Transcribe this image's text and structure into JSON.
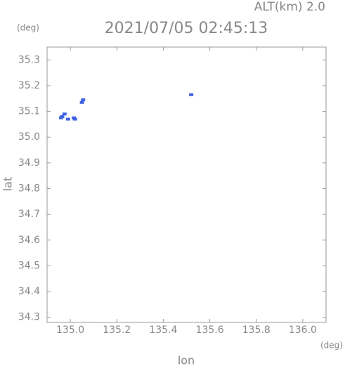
{
  "chart_data": {
    "type": "scatter",
    "title": "2021/07/05 02:45:13",
    "subtitle": "ALT(km) 2.0",
    "x_label": "lon",
    "y_label": "lat",
    "x_unit": "(deg)",
    "y_unit": "(deg)",
    "color": "#3f63e0",
    "x": [
      134.965,
      134.975,
      134.96,
      134.99,
      135.02,
      135.015,
      135.05,
      135.055,
      135.52
    ],
    "values": [
      35.08,
      35.09,
      35.075,
      35.07,
      35.07,
      35.075,
      35.135,
      35.145,
      35.165
    ],
    "xlim": [
      134.9,
      136.1
    ],
    "ylim": [
      34.28,
      35.35
    ],
    "xticks": [
      {
        "value": 135,
        "label": "135.0"
      },
      135.2,
      135.4,
      135.6,
      135.8,
      {
        "value": 136,
        "label": "136.0"
      }
    ],
    "yticks": [
      35.3,
      35.2,
      35.1,
      {
        "value": 35,
        "label": "35.0"
      },
      34.9,
      34.8,
      34.7,
      34.6,
      34.5,
      34.4,
      34.3
    ]
  }
}
